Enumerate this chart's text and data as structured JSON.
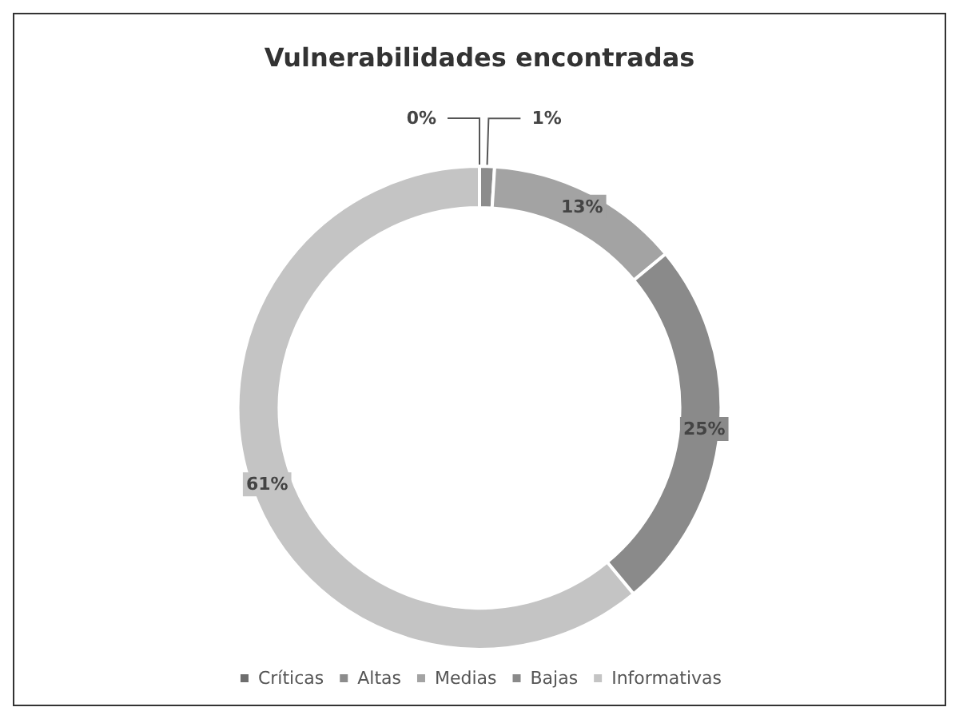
{
  "chart_data": {
    "type": "donut",
    "title": "Vulnerabilidades encontradas",
    "categories": [
      "Críticas",
      "Altas",
      "Medias",
      "Bajas",
      "Informativas"
    ],
    "values": [
      0,
      1,
      13,
      25,
      61
    ],
    "colors": [
      "#6e6e6e",
      "#8c8c8c",
      "#a3a3a3",
      "#8a8a8a",
      "#c4c4c4"
    ],
    "value_labels": [
      "0%",
      "1%",
      "13%",
      "25%",
      "61%"
    ],
    "legend": "bottom"
  }
}
